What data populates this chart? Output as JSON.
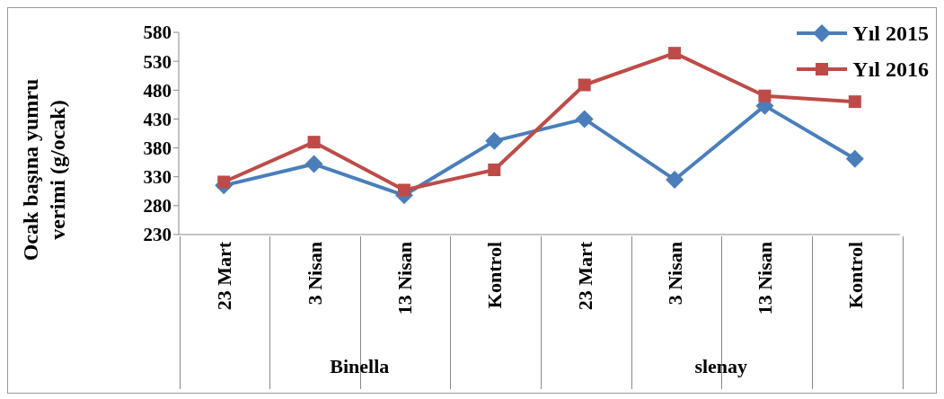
{
  "chart_data": {
    "type": "line",
    "ylabel": "Ocak başına yumru verimi (g/ocak)",
    "categories": [
      "23 Mart",
      "3 Nisan",
      "13 Nisan",
      "Kontrol",
      "23 Mart",
      "3 Nisan",
      "13 Nisan",
      "Kontrol"
    ],
    "series": [
      {
        "name": "Yıl 2015",
        "color": "#4a7ebb",
        "marker": "diamond",
        "values": [
          315,
          352,
          298,
          392,
          430,
          325,
          453,
          361
        ]
      },
      {
        "name": "Yıl 2016",
        "color": "#be4b48",
        "marker": "square",
        "values": [
          321,
          390,
          307,
          342,
          489,
          544,
          470,
          460
        ]
      }
    ],
    "ylim": [
      230,
      580
    ],
    "yticks": [
      230,
      280,
      330,
      380,
      430,
      480,
      530,
      580
    ],
    "annotations": [
      "Binella",
      "slenay"
    ],
    "grid": false,
    "legend": "top right",
    "line_style": "solid"
  }
}
